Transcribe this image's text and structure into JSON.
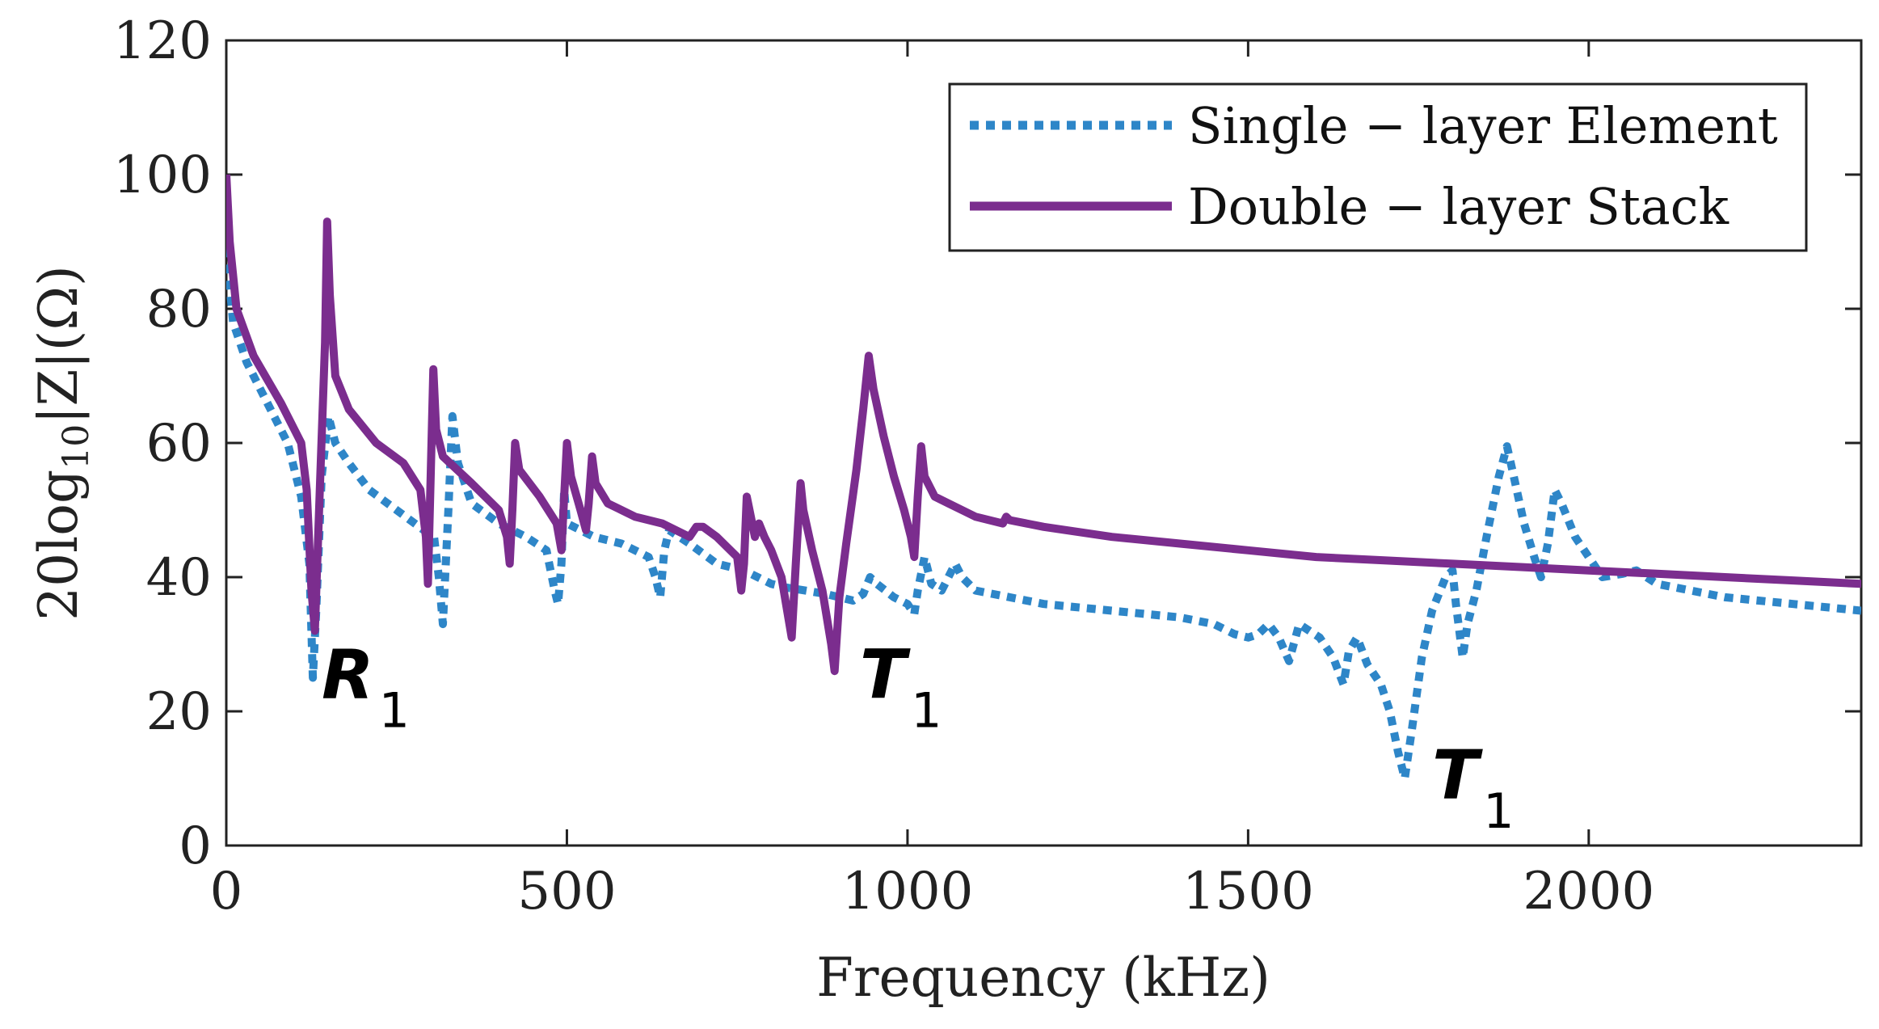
{
  "chart_data": {
    "type": "line",
    "title": "",
    "xlabel": "Frequency (kHz)",
    "ylabel": "20log10|Z|(Ω)",
    "ylabel_parts": {
      "prefix": "20log",
      "sub": "10",
      "suffix": "|Z|(Ω)"
    },
    "xlim": [
      0,
      2400
    ],
    "ylim": [
      0,
      120
    ],
    "xticks": [
      0,
      500,
      1000,
      1500,
      2000
    ],
    "yticks": [
      0,
      20,
      40,
      60,
      80,
      100,
      120
    ],
    "grid": false,
    "legend_position": "top-right",
    "series": [
      {
        "name": "Single − layer Element",
        "style": "dotted",
        "color": "#2E86C8",
        "points": [
          [
            0,
            89
          ],
          [
            10,
            78
          ],
          [
            30,
            72
          ],
          [
            60,
            66
          ],
          [
            90,
            60
          ],
          [
            110,
            52
          ],
          [
            122,
            42
          ],
          [
            127,
            25
          ],
          [
            132,
            35
          ],
          [
            140,
            55
          ],
          [
            150,
            64
          ],
          [
            160,
            60
          ],
          [
            180,
            57
          ],
          [
            210,
            53
          ],
          [
            250,
            50
          ],
          [
            290,
            47
          ],
          [
            305,
            46
          ],
          [
            312,
            40
          ],
          [
            318,
            33
          ],
          [
            326,
            50
          ],
          [
            332,
            64
          ],
          [
            340,
            57
          ],
          [
            360,
            51
          ],
          [
            400,
            48
          ],
          [
            440,
            46
          ],
          [
            470,
            44
          ],
          [
            482,
            38
          ],
          [
            487,
            36
          ],
          [
            492,
            42
          ],
          [
            496,
            53
          ],
          [
            500,
            48
          ],
          [
            540,
            46
          ],
          [
            580,
            45
          ],
          [
            620,
            43
          ],
          [
            630,
            40
          ],
          [
            637,
            37
          ],
          [
            643,
            44
          ],
          [
            650,
            47
          ],
          [
            680,
            45
          ],
          [
            720,
            42
          ],
          [
            760,
            41
          ],
          [
            780,
            40
          ],
          [
            800,
            39
          ],
          [
            820,
            38.5
          ],
          [
            850,
            38
          ],
          [
            880,
            37.5
          ],
          [
            900,
            37
          ],
          [
            920,
            36.5
          ],
          [
            935,
            37.5
          ],
          [
            945,
            40
          ],
          [
            955,
            39
          ],
          [
            980,
            37
          ],
          [
            1000,
            36
          ],
          [
            1010,
            34.5
          ],
          [
            1015,
            38
          ],
          [
            1025,
            43
          ],
          [
            1035,
            39
          ],
          [
            1050,
            38
          ],
          [
            1060,
            40
          ],
          [
            1070,
            42
          ],
          [
            1080,
            40
          ],
          [
            1100,
            38
          ],
          [
            1150,
            37
          ],
          [
            1200,
            36
          ],
          [
            1300,
            35
          ],
          [
            1400,
            34
          ],
          [
            1450,
            33
          ],
          [
            1480,
            31.5
          ],
          [
            1500,
            31
          ],
          [
            1515,
            31.5
          ],
          [
            1530,
            33
          ],
          [
            1545,
            31
          ],
          [
            1560,
            27.5
          ],
          [
            1575,
            33
          ],
          [
            1590,
            32
          ],
          [
            1605,
            31
          ],
          [
            1625,
            28
          ],
          [
            1640,
            24
          ],
          [
            1648,
            29
          ],
          [
            1660,
            31
          ],
          [
            1675,
            27
          ],
          [
            1695,
            24
          ],
          [
            1708,
            20
          ],
          [
            1720,
            14
          ],
          [
            1730,
            10
          ],
          [
            1740,
            17
          ],
          [
            1755,
            28
          ],
          [
            1770,
            35
          ],
          [
            1790,
            40
          ],
          [
            1800,
            41
          ],
          [
            1805,
            36
          ],
          [
            1815,
            28
          ],
          [
            1822,
            33
          ],
          [
            1835,
            38
          ],
          [
            1850,
            46
          ],
          [
            1868,
            55
          ],
          [
            1880,
            59.5
          ],
          [
            1890,
            55
          ],
          [
            1905,
            48
          ],
          [
            1920,
            43
          ],
          [
            1930,
            40
          ],
          [
            1940,
            45
          ],
          [
            1950,
            53
          ],
          [
            1960,
            51
          ],
          [
            1980,
            46
          ],
          [
            2000,
            43
          ],
          [
            2020,
            40
          ],
          [
            2050,
            40.5
          ],
          [
            2070,
            41
          ],
          [
            2100,
            39
          ],
          [
            2150,
            38
          ],
          [
            2200,
            37
          ],
          [
            2300,
            36
          ],
          [
            2400,
            35
          ]
        ]
      },
      {
        "name": "Double − layer Stack",
        "style": "solid",
        "color": "#7B2D8E",
        "points": [
          [
            0,
            100
          ],
          [
            5,
            90
          ],
          [
            15,
            80
          ],
          [
            40,
            73
          ],
          [
            80,
            66
          ],
          [
            110,
            60
          ],
          [
            118,
            53
          ],
          [
            125,
            38
          ],
          [
            130,
            32
          ],
          [
            138,
            55
          ],
          [
            145,
            75
          ],
          [
            148,
            93
          ],
          [
            152,
            82
          ],
          [
            160,
            70
          ],
          [
            180,
            65
          ],
          [
            220,
            60
          ],
          [
            260,
            57
          ],
          [
            285,
            53
          ],
          [
            293,
            46
          ],
          [
            296,
            39
          ],
          [
            300,
            55
          ],
          [
            304,
            71
          ],
          [
            308,
            62
          ],
          [
            318,
            58
          ],
          [
            360,
            54
          ],
          [
            400,
            50
          ],
          [
            412,
            46
          ],
          [
            416,
            42
          ],
          [
            420,
            50
          ],
          [
            424,
            60
          ],
          [
            430,
            56
          ],
          [
            460,
            52
          ],
          [
            485,
            48
          ],
          [
            492,
            44
          ],
          [
            496,
            52
          ],
          [
            500,
            60
          ],
          [
            506,
            55
          ],
          [
            520,
            50
          ],
          [
            528,
            47
          ],
          [
            532,
            51
          ],
          [
            537,
            58
          ],
          [
            542,
            54
          ],
          [
            560,
            51
          ],
          [
            600,
            49
          ],
          [
            640,
            48
          ],
          [
            680,
            46
          ],
          [
            690,
            47.5
          ],
          [
            700,
            47.5
          ],
          [
            720,
            46
          ],
          [
            740,
            44
          ],
          [
            750,
            43
          ],
          [
            756,
            38
          ],
          [
            760,
            42
          ],
          [
            764,
            52
          ],
          [
            768,
            50
          ],
          [
            776,
            46
          ],
          [
            782,
            48
          ],
          [
            790,
            46
          ],
          [
            800,
            44
          ],
          [
            815,
            40
          ],
          [
            825,
            34
          ],
          [
            830,
            31
          ],
          [
            836,
            42
          ],
          [
            843,
            54
          ],
          [
            847,
            50
          ],
          [
            860,
            44
          ],
          [
            875,
            38
          ],
          [
            888,
            30
          ],
          [
            893,
            26
          ],
          [
            900,
            37
          ],
          [
            910,
            45
          ],
          [
            925,
            56
          ],
          [
            935,
            65
          ],
          [
            943,
            73
          ],
          [
            950,
            68
          ],
          [
            965,
            61
          ],
          [
            980,
            55
          ],
          [
            995,
            50
          ],
          [
            1005,
            46
          ],
          [
            1010,
            43
          ],
          [
            1015,
            52
          ],
          [
            1020,
            59.5
          ],
          [
            1025,
            55
          ],
          [
            1040,
            52
          ],
          [
            1060,
            51
          ],
          [
            1100,
            49
          ],
          [
            1140,
            48
          ],
          [
            1145,
            49
          ],
          [
            1150,
            48.5
          ],
          [
            1200,
            47.5
          ],
          [
            1300,
            46
          ],
          [
            1400,
            45
          ],
          [
            1500,
            44
          ],
          [
            1600,
            43
          ],
          [
            1700,
            42.5
          ],
          [
            1800,
            42
          ],
          [
            1900,
            41.5
          ],
          [
            2000,
            41
          ],
          [
            2100,
            40.5
          ],
          [
            2200,
            40
          ],
          [
            2300,
            39.5
          ],
          [
            2400,
            39
          ]
        ]
      }
    ],
    "annotations": [
      {
        "label": "R",
        "sub": "1",
        "x": 140,
        "y": 22
      },
      {
        "label": "T",
        "sub": "1",
        "x": 930,
        "y": 22
      },
      {
        "label": "T",
        "sub": "1",
        "x": 1770,
        "y": 7
      }
    ]
  }
}
